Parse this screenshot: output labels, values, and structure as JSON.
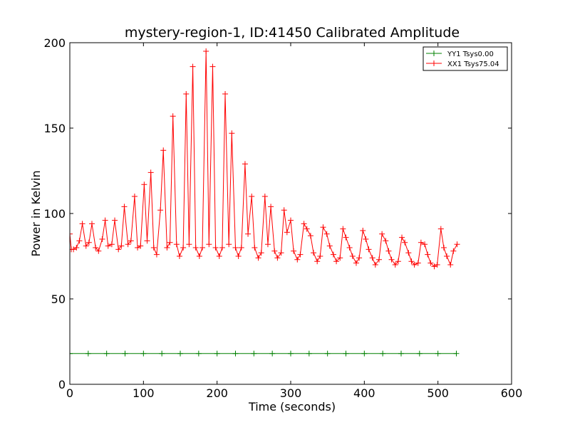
{
  "chart_data": {
    "type": "line",
    "title": "mystery-region-1, ID:41450 Calibrated Amplitude",
    "xlabel": "Time (seconds)",
    "ylabel": "Power in Kelvin",
    "xlim": [
      0,
      600
    ],
    "ylim": [
      0,
      200
    ],
    "xticks": [
      0,
      100,
      200,
      300,
      400,
      500,
      600
    ],
    "yticks": [
      0,
      50,
      100,
      150,
      200
    ],
    "xtick_labels": [
      "0",
      "100",
      "200",
      "300",
      "400",
      "500",
      "600"
    ],
    "ytick_labels": [
      "0",
      "50",
      "100",
      "150",
      "200"
    ],
    "grid": false,
    "legend_position": "top-right",
    "marker": "+",
    "series": [
      {
        "name": "YY1 Tsys0.00",
        "color": "#008000",
        "x": [
          0,
          25,
          50,
          75,
          100,
          125,
          150,
          175,
          200,
          225,
          250,
          275,
          300,
          325,
          350,
          375,
          400,
          425,
          450,
          475,
          500,
          525
        ],
        "y": [
          18,
          18,
          18,
          18,
          18,
          18,
          18,
          18,
          18,
          18,
          18,
          18,
          18,
          18,
          18,
          18,
          18,
          18,
          18,
          18,
          18,
          18
        ]
      },
      {
        "name": "XX1 Tsys75.04",
        "color": "#ff0000",
        "x": [
          0,
          2,
          5,
          9,
          13,
          17,
          22,
          26,
          30,
          35,
          39,
          44,
          48,
          52,
          57,
          61,
          66,
          70,
          74,
          79,
          83,
          88,
          92,
          96,
          101,
          105,
          110,
          114,
          118,
          123,
          127,
          132,
          136,
          140,
          145,
          149,
          154,
          158,
          162,
          167,
          171,
          176,
          180,
          185,
          189,
          194,
          198,
          203,
          207,
          211,
          216,
          220,
          225,
          229,
          233,
          238,
          242,
          247,
          251,
          256,
          260,
          265,
          269,
          273,
          278,
          282,
          287,
          291,
          295,
          300,
          304,
          309,
          313,
          318,
          322,
          327,
          331,
          336,
          340,
          344,
          349,
          353,
          358,
          362,
          367,
          371,
          375,
          380,
          384,
          389,
          393,
          398,
          402,
          406,
          411,
          415,
          420,
          424,
          429,
          433,
          437,
          442,
          446,
          451,
          455,
          460,
          464,
          468,
          473,
          477,
          482,
          486,
          490,
          495,
          499,
          504,
          508,
          512,
          517,
          521,
          526
        ],
        "y": [
          88,
          79,
          79,
          80,
          84,
          94,
          81,
          83,
          94,
          80,
          78,
          85,
          96,
          81,
          82,
          96,
          79,
          81,
          104,
          82,
          84,
          110,
          80,
          81,
          117,
          84,
          124,
          80,
          76,
          102,
          137,
          80,
          83,
          157,
          82,
          75,
          80,
          170,
          82,
          186,
          80,
          75,
          80,
          195,
          82,
          186,
          80,
          75,
          80,
          170,
          82,
          147,
          80,
          75,
          80,
          129,
          88,
          110,
          80,
          74,
          77,
          110,
          82,
          104,
          78,
          74,
          77,
          102,
          89,
          96,
          78,
          73,
          76,
          94,
          91,
          87,
          77,
          72,
          75,
          92,
          88,
          81,
          76,
          72,
          74,
          91,
          86,
          80,
          75,
          71,
          74,
          90,
          85,
          79,
          74,
          70,
          73,
          88,
          84,
          78,
          73,
          70,
          72,
          86,
          83,
          77,
          72,
          70,
          71,
          83,
          82,
          76,
          71,
          69,
          70,
          91,
          80,
          75,
          70,
          78,
          82
        ]
      }
    ]
  }
}
